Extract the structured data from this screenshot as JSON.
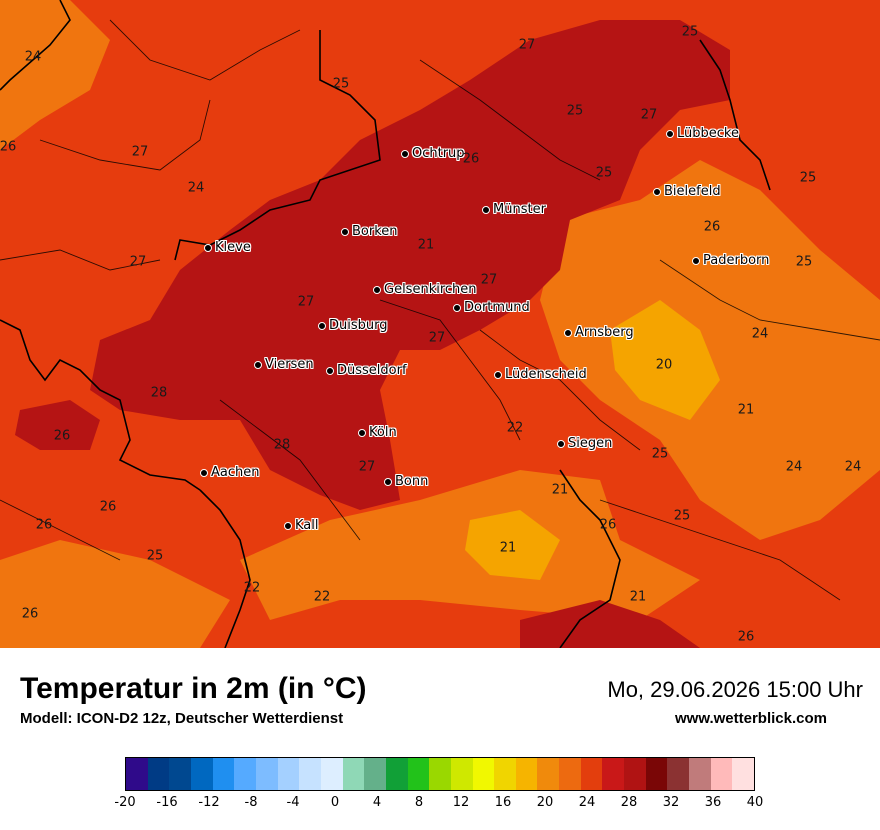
{
  "map": {
    "cities": [
      {
        "name": "Lübbecke"
      },
      {
        "name": "Ochtrup"
      },
      {
        "name": "Bielefeld"
      },
      {
        "name": "Münster"
      },
      {
        "name": "Borken"
      },
      {
        "name": "Kleve"
      },
      {
        "name": "Paderborn"
      },
      {
        "name": "Gelsenkirchen"
      },
      {
        "name": "Dortmund"
      },
      {
        "name": "Duisburg"
      },
      {
        "name": "Arnsberg"
      },
      {
        "name": "Viersen"
      },
      {
        "name": "Düsseldorf"
      },
      {
        "name": "Lüdenscheid"
      },
      {
        "name": "Köln"
      },
      {
        "name": "Siegen"
      },
      {
        "name": "Aachen"
      },
      {
        "name": "Bonn"
      },
      {
        "name": "Kall"
      }
    ],
    "values": [
      "24",
      "25",
      "27",
      "25",
      "27",
      "25",
      "26",
      "27",
      "26",
      "25",
      "24",
      "25",
      "21",
      "26",
      "27",
      "25",
      "27",
      "27",
      "24",
      "27",
      "20",
      "28",
      "26",
      "21",
      "22",
      "28",
      "25",
      "24",
      "24",
      "27",
      "26",
      "21",
      "26",
      "25",
      "26",
      "25",
      "21",
      "22",
      "22",
      "21",
      "26",
      "26"
    ]
  },
  "footer": {
    "title": "Temperatur in 2m (in °C)",
    "model": "Modell: ICON-D2 12z, Deutscher Wetterdienst",
    "datetime": "Mo, 29.06.2026 15:00 Uhr",
    "website": "www.wetterblick.com"
  },
  "legend": {
    "colors": [
      "#2f0a8a",
      "#003b85",
      "#004890",
      "#0068c0",
      "#1f8ff0",
      "#55aaff",
      "#7dbcff",
      "#a4d0ff",
      "#c6e2ff",
      "#ddeeff",
      "#8fd8b6",
      "#64b08a",
      "#11a037",
      "#22c21a",
      "#9ad800",
      "#cfe800",
      "#f1f800",
      "#f0d500",
      "#f6b400",
      "#f08a0c",
      "#ed6a10",
      "#e33e0d",
      "#c91818",
      "#b01313",
      "#7a0606",
      "#8b3232",
      "#c07b7b",
      "#ffbaba",
      "#ffe0e0"
    ],
    "ticks": [
      "-20",
      "-16",
      "-12",
      "-8",
      "-4",
      "0",
      "4",
      "8",
      "12",
      "16",
      "20",
      "24",
      "28",
      "32",
      "36",
      "40"
    ]
  }
}
